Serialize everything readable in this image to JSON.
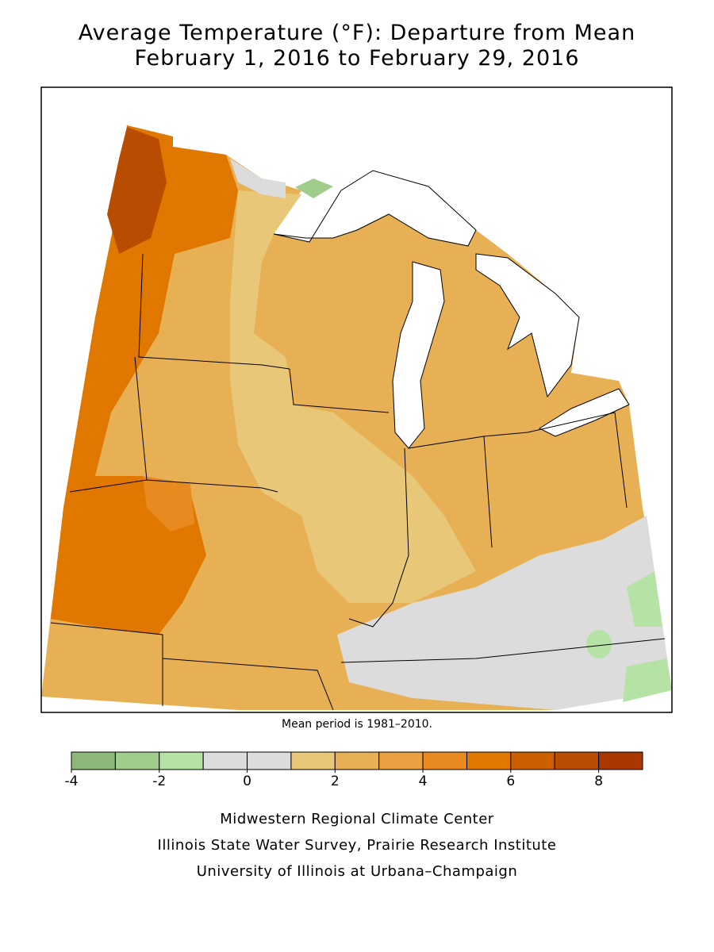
{
  "title": [
    "Average Temperature (°F): Departure from Mean",
    "February 1, 2016 to February 29, 2016"
  ],
  "note": "Mean period is 1981–2010.",
  "legend": {
    "bins": [
      -4,
      -3,
      -2,
      -1,
      0,
      1,
      2,
      3,
      4,
      5,
      6,
      7,
      8,
      9
    ],
    "colors": [
      "#8db87a",
      "#a0cc8c",
      "#b5e3a5",
      "#dcdcdc",
      "#dcdcdc",
      "#e8c878",
      "#e8b055",
      "#e8a040",
      "#e88a20",
      "#e07800",
      "#cc6000",
      "#b84c00",
      "#a83800"
    ],
    "ticks": [
      -4,
      -2,
      0,
      2,
      4,
      6,
      8
    ]
  },
  "credits": [
    "Midwestern Regional Climate Center",
    "Illinois State Water Survey, Prairie Research Institute",
    "University of Illinois at Urbana–Champaign"
  ]
}
